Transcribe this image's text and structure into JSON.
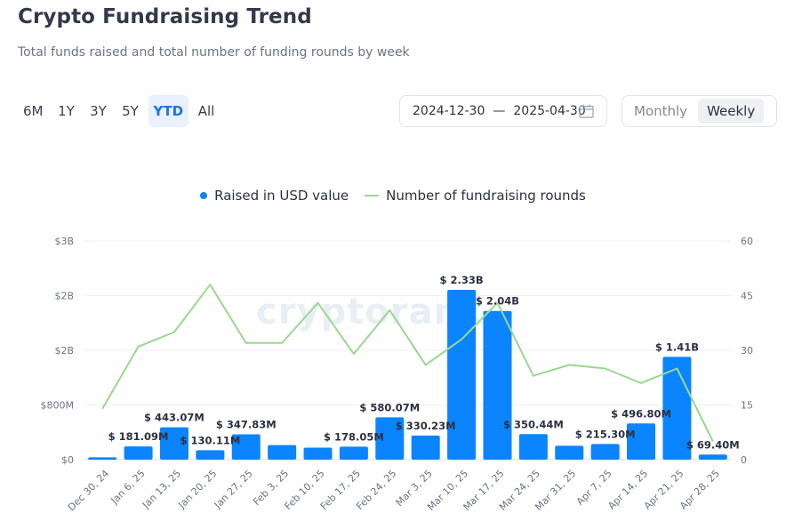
{
  "header": {
    "title": "Crypto Fundraising Trend",
    "subtitle": "Total funds raised and total number of funding rounds by week"
  },
  "ranges": [
    {
      "label": "6M",
      "active": false
    },
    {
      "label": "1Y",
      "active": false
    },
    {
      "label": "3Y",
      "active": false
    },
    {
      "label": "5Y",
      "active": false
    },
    {
      "label": "YTD",
      "active": true
    },
    {
      "label": "All",
      "active": false
    }
  ],
  "date_range": {
    "start": "2024-12-30",
    "separator": "—",
    "end": "2025-04-30"
  },
  "period": {
    "monthly_label": "Monthly",
    "weekly_label": "Weekly",
    "selected": "Weekly"
  },
  "watermark": "cryptorank",
  "colors": {
    "bar": "#0b84ff",
    "line": "#9ad88f",
    "accent": "#1a73e8"
  },
  "chart_data": {
    "type": "bar",
    "categories": [
      "Dec 30, 24",
      "Jan 6, 25",
      "Jan 13, 25",
      "Jan 20, 25",
      "Jan 27, 25",
      "Feb 3, 25",
      "Feb 10, 25",
      "Feb 17, 25",
      "Feb 24, 25",
      "Mar 3, 25",
      "Mar 10, 25",
      "Mar 17, 25",
      "Mar 24, 25",
      "Mar 31, 25",
      "Apr 7, 25",
      "Apr 14, 25",
      "Apr 21, 25",
      "Apr 28, 25"
    ],
    "series": [
      {
        "name": "Raised in USD value",
        "type": "bar",
        "axis": "left",
        "values": [
          32000000,
          181090000,
          443070000,
          130110000,
          347830000,
          200000000,
          165000000,
          178050000,
          580070000,
          330230000,
          2330000000,
          2040000000,
          350440000,
          190000000,
          215300000,
          496800000,
          1410000000,
          69400000
        ],
        "labels": [
          "",
          "$ 181.09M",
          "$ 443.07M",
          "$ 130.11M",
          "$ 347.83M",
          "",
          "",
          "$ 178.05M",
          "$ 580.07M",
          "$ 330.23M",
          "$ 2.33B",
          "$ 2.04B",
          "$ 350.44M",
          "",
          "$ 215.30M",
          "$ 496.80M",
          "$ 1.41B",
          "$ 69.40M"
        ]
      },
      {
        "name": "Number of fundraising rounds",
        "type": "line",
        "axis": "right",
        "values": [
          14,
          31,
          35,
          48,
          32,
          32,
          43,
          29,
          41,
          26,
          33,
          43,
          23,
          26,
          25,
          21,
          25,
          5
        ]
      }
    ],
    "y_left": {
      "ticks": [
        "$0",
        "$800M",
        "$2B",
        "$2B",
        "$3B"
      ],
      "ylim": [
        0,
        3000000000
      ]
    },
    "y_right": {
      "ticks": [
        "0",
        "15",
        "30",
        "45",
        "60"
      ],
      "ylim": [
        0,
        60
      ]
    },
    "legend_position": "top-center",
    "grid": true
  }
}
